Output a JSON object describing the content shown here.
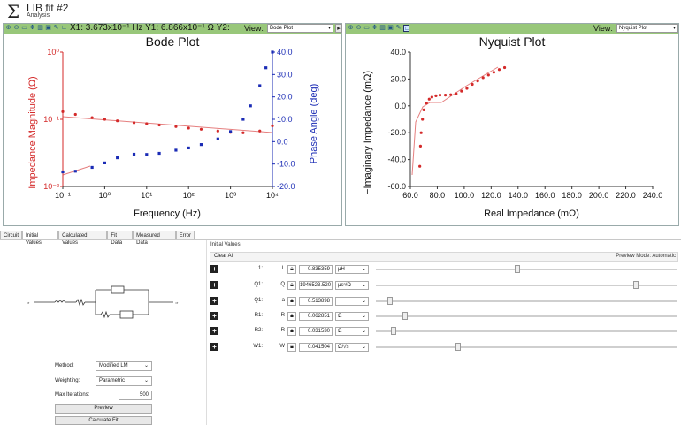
{
  "app": {
    "icon": "sigma-icon",
    "title": "LIB fit #2",
    "subtitle": "Analysis"
  },
  "bode": {
    "readout": "X1:  3.673x10⁻¹ Hz  Y1:  6.866x10⁻¹ Ω  Y2:",
    "view_label": "View:",
    "view_value": "Bode Plot",
    "title": "Bode Plot",
    "x_label": "Frequency (Hz)",
    "y_left_label": "Impedance Magnitude (Ω)",
    "y_right_label": "Phase Angle (deg)",
    "x_ticks": [
      "10⁻¹",
      "10⁰",
      "10¹",
      "10²",
      "10³",
      "10⁴"
    ],
    "y_left_ticks": [
      "10⁰",
      "10⁻¹",
      "10⁻²"
    ],
    "y_right_ticks": [
      "40.0",
      "30.0",
      "20.0",
      "10.0",
      "0.0",
      "-10.0",
      "-20.0"
    ]
  },
  "nyquist": {
    "view_label": "View:",
    "view_value": "Nyquist Plot",
    "title": "Nyquist Plot",
    "x_label": "Real Impedance (mΩ)",
    "y_label": "−Imaginary Impedance (mΩ)",
    "x_ticks": [
      "60.0",
      "80.0",
      "100.0",
      "120.0",
      "140.0",
      "160.0",
      "180.0",
      "200.0",
      "220.0",
      "240.0"
    ],
    "y_ticks": [
      "40.0",
      "20.0",
      "0.0",
      "-20.0",
      "-40.0",
      "-60.0"
    ]
  },
  "chart_data": [
    {
      "type": "scatter",
      "title": "Bode Plot",
      "xlabel": "Frequency (Hz)",
      "ylabel": "Impedance Magnitude (Ω)",
      "y2label": "Phase Angle (deg)",
      "xscale": "log",
      "yscale": "log",
      "xlim": [
        0.1,
        10000
      ],
      "ylim": [
        0.01,
        1
      ],
      "y2lim": [
        -20,
        40
      ],
      "series": [
        {
          "axis": "left",
          "color": "#d42a2a",
          "x": [
            0.1,
            0.2,
            0.5,
            1,
            2,
            5,
            10,
            20,
            50,
            100,
            200,
            500,
            1000,
            2000,
            5000,
            10000
          ],
          "y": [
            0.13,
            0.118,
            0.106,
            0.1,
            0.095,
            0.089,
            0.086,
            0.082,
            0.078,
            0.074,
            0.071,
            0.067,
            0.064,
            0.063,
            0.067,
            0.08
          ]
        },
        {
          "axis": "right",
          "color": "#1a2bb5",
          "x": [
            0.1,
            0.2,
            0.5,
            1,
            2,
            5,
            10,
            20,
            50,
            100,
            200,
            500,
            1000,
            2000,
            3000,
            5000,
            7000,
            10000
          ],
          "y": [
            -13.5,
            -13.2,
            -11.5,
            -9.5,
            -7.2,
            -5.6,
            -5.7,
            -5.2,
            -3.8,
            -2.8,
            -1.3,
            1.2,
            4.5,
            10,
            16,
            25,
            33,
            40
          ]
        }
      ]
    },
    {
      "type": "scatter",
      "title": "Nyquist Plot",
      "xlabel": "Real Impedance (mΩ)",
      "ylabel": "−Imaginary Impedance (mΩ)",
      "xlim": [
        60,
        240
      ],
      "ylim": [
        -60,
        40
      ],
      "series": [
        {
          "color": "#d42a2a",
          "x": [
            67,
            67.5,
            68,
            69,
            70,
            72,
            74,
            76,
            79,
            82,
            86,
            90,
            94,
            98,
            102,
            106,
            110,
            114,
            118,
            122,
            126,
            130
          ],
          "y": [
            -45,
            -30,
            -20,
            -10,
            -3,
            2,
            5,
            6.5,
            7.5,
            8,
            8,
            8.3,
            9,
            11,
            13,
            16,
            18.5,
            21,
            23,
            25,
            27,
            28.5
          ]
        }
      ]
    }
  ],
  "tabs": [
    "Circuit",
    "Initial Values",
    "Calculated Values",
    "Fit Data",
    "Measured Data",
    "Error"
  ],
  "active_tab": "Initial Values",
  "initial_values": {
    "section_label": "Initial Values",
    "clear_all": "Clear All",
    "preview_mode": "Preview Mode:  Automatic",
    "params": [
      {
        "name": "L1:",
        "symbol": "L",
        "value": "0.835359",
        "unit": "μH",
        "slider": 0.47
      },
      {
        "name": "Q1:",
        "symbol": "Q",
        "value": "1946523.520",
        "unit": "μsⁿ/Ω",
        "slider": 0.87
      },
      {
        "name": "Q1:",
        "symbol": "a",
        "value": "0.513898",
        "unit": "",
        "slider": 0.04
      },
      {
        "name": "R1:",
        "symbol": "R",
        "value": "0.062851",
        "unit": "Ω",
        "slider": 0.09
      },
      {
        "name": "R2:",
        "symbol": "R",
        "value": "0.031530",
        "unit": "Ω",
        "slider": 0.05
      },
      {
        "name": "W1:",
        "symbol": "W",
        "value": "0.041504",
        "unit": "Ω/√s",
        "slider": 0.27
      }
    ]
  },
  "fit_settings": {
    "method_label": "Method:",
    "method_value": "Modified LM",
    "weighting_label": "Weighting:",
    "weighting_value": "Parametric",
    "max_iter_label": "Max Iterations:",
    "max_iter_value": "500",
    "preview_button": "Preview",
    "calculate_button": "Calculate Fit"
  },
  "colors": {
    "toolbar": "#98c77a",
    "magnitude": "#d42a2a",
    "phase": "#1a2bb5"
  }
}
